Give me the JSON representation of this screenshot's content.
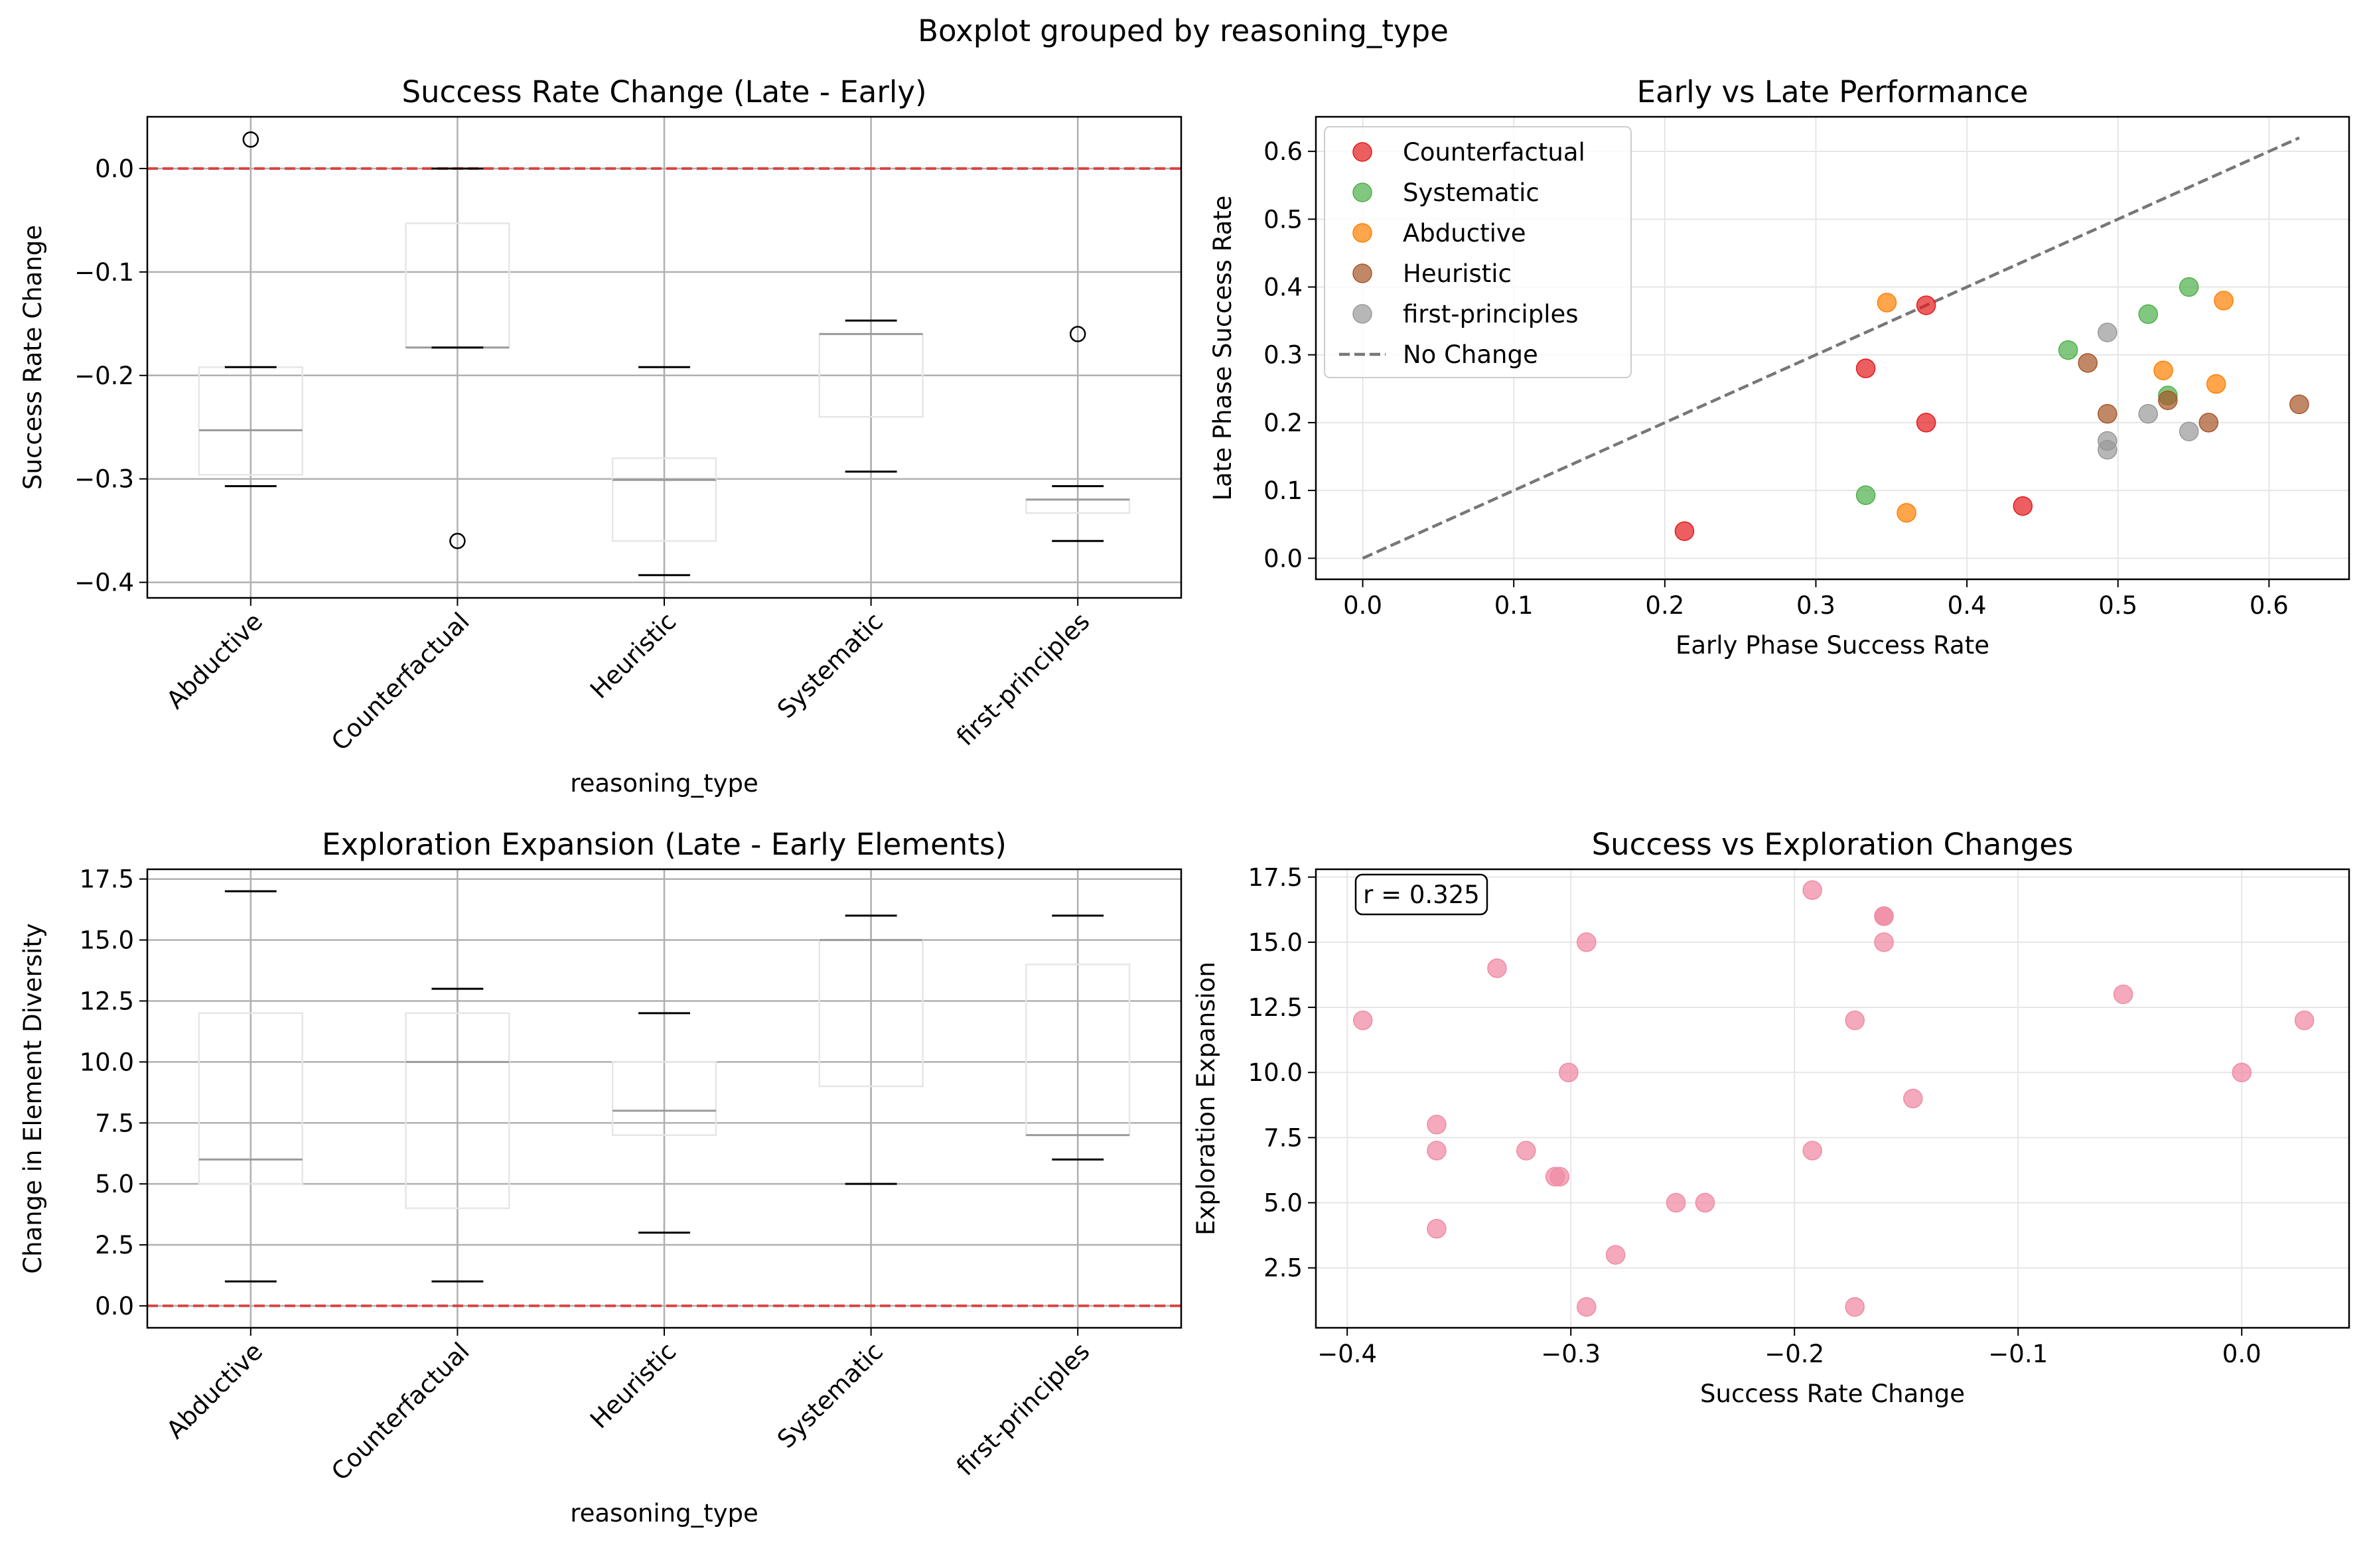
{
  "suptitle": "Boxplot grouped by reasoning_type",
  "chart_data": [
    {
      "type": "box",
      "title": "Success Rate Change (Late - Early)",
      "xlabel": "reasoning_type",
      "ylabel": "Success Rate Change",
      "ylim": [
        -0.415,
        0.05
      ],
      "yticks": [
        -0.4,
        -0.3,
        -0.2,
        -0.1,
        0.0
      ],
      "ytick_labels": [
        "−0.4",
        "−0.3",
        "−0.2",
        "−0.1",
        "0.0"
      ],
      "grid": true,
      "reference_line": {
        "y": 0.0,
        "color": "#e03030",
        "style": "dashed"
      },
      "categories": [
        "Abductive",
        "Counterfactual",
        "Heuristic",
        "Systematic",
        "first-principles"
      ],
      "boxes": [
        {
          "whislo": -0.307,
          "q1": -0.296,
          "med": -0.253,
          "q3": -0.192,
          "whishi": -0.192,
          "fliers": [
            0.028
          ]
        },
        {
          "whislo": -0.173,
          "q1": -0.173,
          "med": -0.173,
          "q3": -0.053,
          "whishi": 0.0,
          "fliers": [
            -0.36
          ]
        },
        {
          "whislo": -0.393,
          "q1": -0.36,
          "med": -0.301,
          "q3": -0.28,
          "whishi": -0.192,
          "fliers": []
        },
        {
          "whislo": -0.293,
          "q1": -0.24,
          "med": -0.16,
          "q3": -0.16,
          "whishi": -0.147,
          "fliers": []
        },
        {
          "whislo": -0.36,
          "q1": -0.333,
          "med": -0.32,
          "q3": -0.32,
          "whishi": -0.307,
          "fliers": [
            -0.16
          ]
        }
      ]
    },
    {
      "type": "scatter",
      "title": "Early vs Late Performance",
      "xlabel": "Early Phase Success Rate",
      "ylabel": "Late Phase Success Rate",
      "xlim": [
        -0.031,
        0.653
      ],
      "ylim": [
        -0.031,
        0.651
      ],
      "xticks": [
        0.0,
        0.1,
        0.2,
        0.3,
        0.4,
        0.5,
        0.6
      ],
      "yticks": [
        0.0,
        0.1,
        0.2,
        0.3,
        0.4,
        0.5,
        0.6
      ],
      "grid": true,
      "legend_position": "upper-left",
      "series": [
        {
          "name": "Counterfactual",
          "color": "#e41a1c",
          "points": [
            [
              0.213,
              0.04
            ],
            [
              0.333,
              0.28
            ],
            [
              0.373,
              0.373
            ],
            [
              0.373,
              0.2
            ],
            [
              0.437,
              0.077
            ]
          ]
        },
        {
          "name": "Systematic",
          "color": "#4daf4a",
          "points": [
            [
              0.333,
              0.093
            ],
            [
              0.467,
              0.307
            ],
            [
              0.52,
              0.36
            ],
            [
              0.547,
              0.4
            ],
            [
              0.533,
              0.24
            ]
          ]
        },
        {
          "name": "Abductive",
          "color": "#ff7f00",
          "points": [
            [
              0.347,
              0.377
            ],
            [
              0.36,
              0.067
            ],
            [
              0.53,
              0.277
            ],
            [
              0.565,
              0.257
            ],
            [
              0.57,
              0.38
            ]
          ]
        },
        {
          "name": "Heuristic",
          "color": "#a65628",
          "points": [
            [
              0.48,
              0.288
            ],
            [
              0.493,
              0.213
            ],
            [
              0.533,
              0.233
            ],
            [
              0.56,
              0.2
            ],
            [
              0.62,
              0.227
            ]
          ]
        },
        {
          "name": "first-principles",
          "color": "#999999",
          "points": [
            [
              0.493,
              0.333
            ],
            [
              0.493,
              0.173
            ],
            [
              0.493,
              0.16
            ],
            [
              0.52,
              0.213
            ],
            [
              0.547,
              0.187
            ]
          ]
        }
      ],
      "reference_line": {
        "name": "No Change",
        "from": [
          0,
          0
        ],
        "to": [
          0.62,
          0.62
        ],
        "color": "#777777",
        "style": "dashed"
      }
    },
    {
      "type": "box",
      "title": "Exploration Expansion (Late - Early Elements)",
      "xlabel": "reasoning_type",
      "ylabel": "Change in Element Diversity",
      "ylim": [
        -0.9,
        17.9
      ],
      "yticks": [
        0.0,
        2.5,
        5.0,
        7.5,
        10.0,
        12.5,
        15.0,
        17.5
      ],
      "grid": true,
      "reference_line": {
        "y": 0.0,
        "color": "#e03030",
        "style": "dashed"
      },
      "categories": [
        "Abductive",
        "Counterfactual",
        "Heuristic",
        "Systematic",
        "first-principles"
      ],
      "boxes": [
        {
          "whislo": 1,
          "q1": 5,
          "med": 6,
          "q3": 12,
          "whishi": 17,
          "fliers": []
        },
        {
          "whislo": 1,
          "q1": 4,
          "med": 10,
          "q3": 12,
          "whishi": 13,
          "fliers": []
        },
        {
          "whislo": 3,
          "q1": 7,
          "med": 8,
          "q3": 10,
          "whishi": 12,
          "fliers": []
        },
        {
          "whislo": 5,
          "q1": 9,
          "med": 15,
          "q3": 15,
          "whishi": 16,
          "fliers": []
        },
        {
          "whislo": 6,
          "q1": 7,
          "med": 7,
          "q3": 14,
          "whishi": 16,
          "fliers": []
        }
      ]
    },
    {
      "type": "scatter",
      "title": "Success vs Exploration Changes",
      "xlabel": "Success Rate Change",
      "ylabel": "Exploration Expansion",
      "xlim": [
        -0.414,
        0.048
      ],
      "ylim": [
        0.2,
        17.8
      ],
      "xticks": [
        -0.4,
        -0.3,
        -0.2,
        -0.1,
        0.0
      ],
      "xtick_labels": [
        "−0.4",
        "−0.3",
        "−0.2",
        "−0.1",
        "0.0"
      ],
      "yticks": [
        2.5,
        5.0,
        7.5,
        10.0,
        12.5,
        15.0,
        17.5
      ],
      "grid": true,
      "color": "#f08ca6",
      "annotation": "r = 0.325",
      "points": [
        [
          -0.393,
          12
        ],
        [
          -0.36,
          8
        ],
        [
          -0.36,
          7
        ],
        [
          -0.36,
          4
        ],
        [
          -0.333,
          14
        ],
        [
          -0.32,
          7
        ],
        [
          -0.307,
          6
        ],
        [
          -0.305,
          6
        ],
        [
          -0.301,
          10
        ],
        [
          -0.293,
          15
        ],
        [
          -0.293,
          1
        ],
        [
          -0.28,
          3
        ],
        [
          -0.253,
          5
        ],
        [
          -0.24,
          5
        ],
        [
          -0.192,
          17
        ],
        [
          -0.192,
          7
        ],
        [
          -0.173,
          12
        ],
        [
          -0.173,
          1
        ],
        [
          -0.16,
          16
        ],
        [
          -0.16,
          16
        ],
        [
          -0.16,
          15
        ],
        [
          -0.147,
          9
        ],
        [
          -0.053,
          13
        ],
        [
          0.0,
          10
        ],
        [
          0.028,
          12
        ]
      ]
    }
  ]
}
